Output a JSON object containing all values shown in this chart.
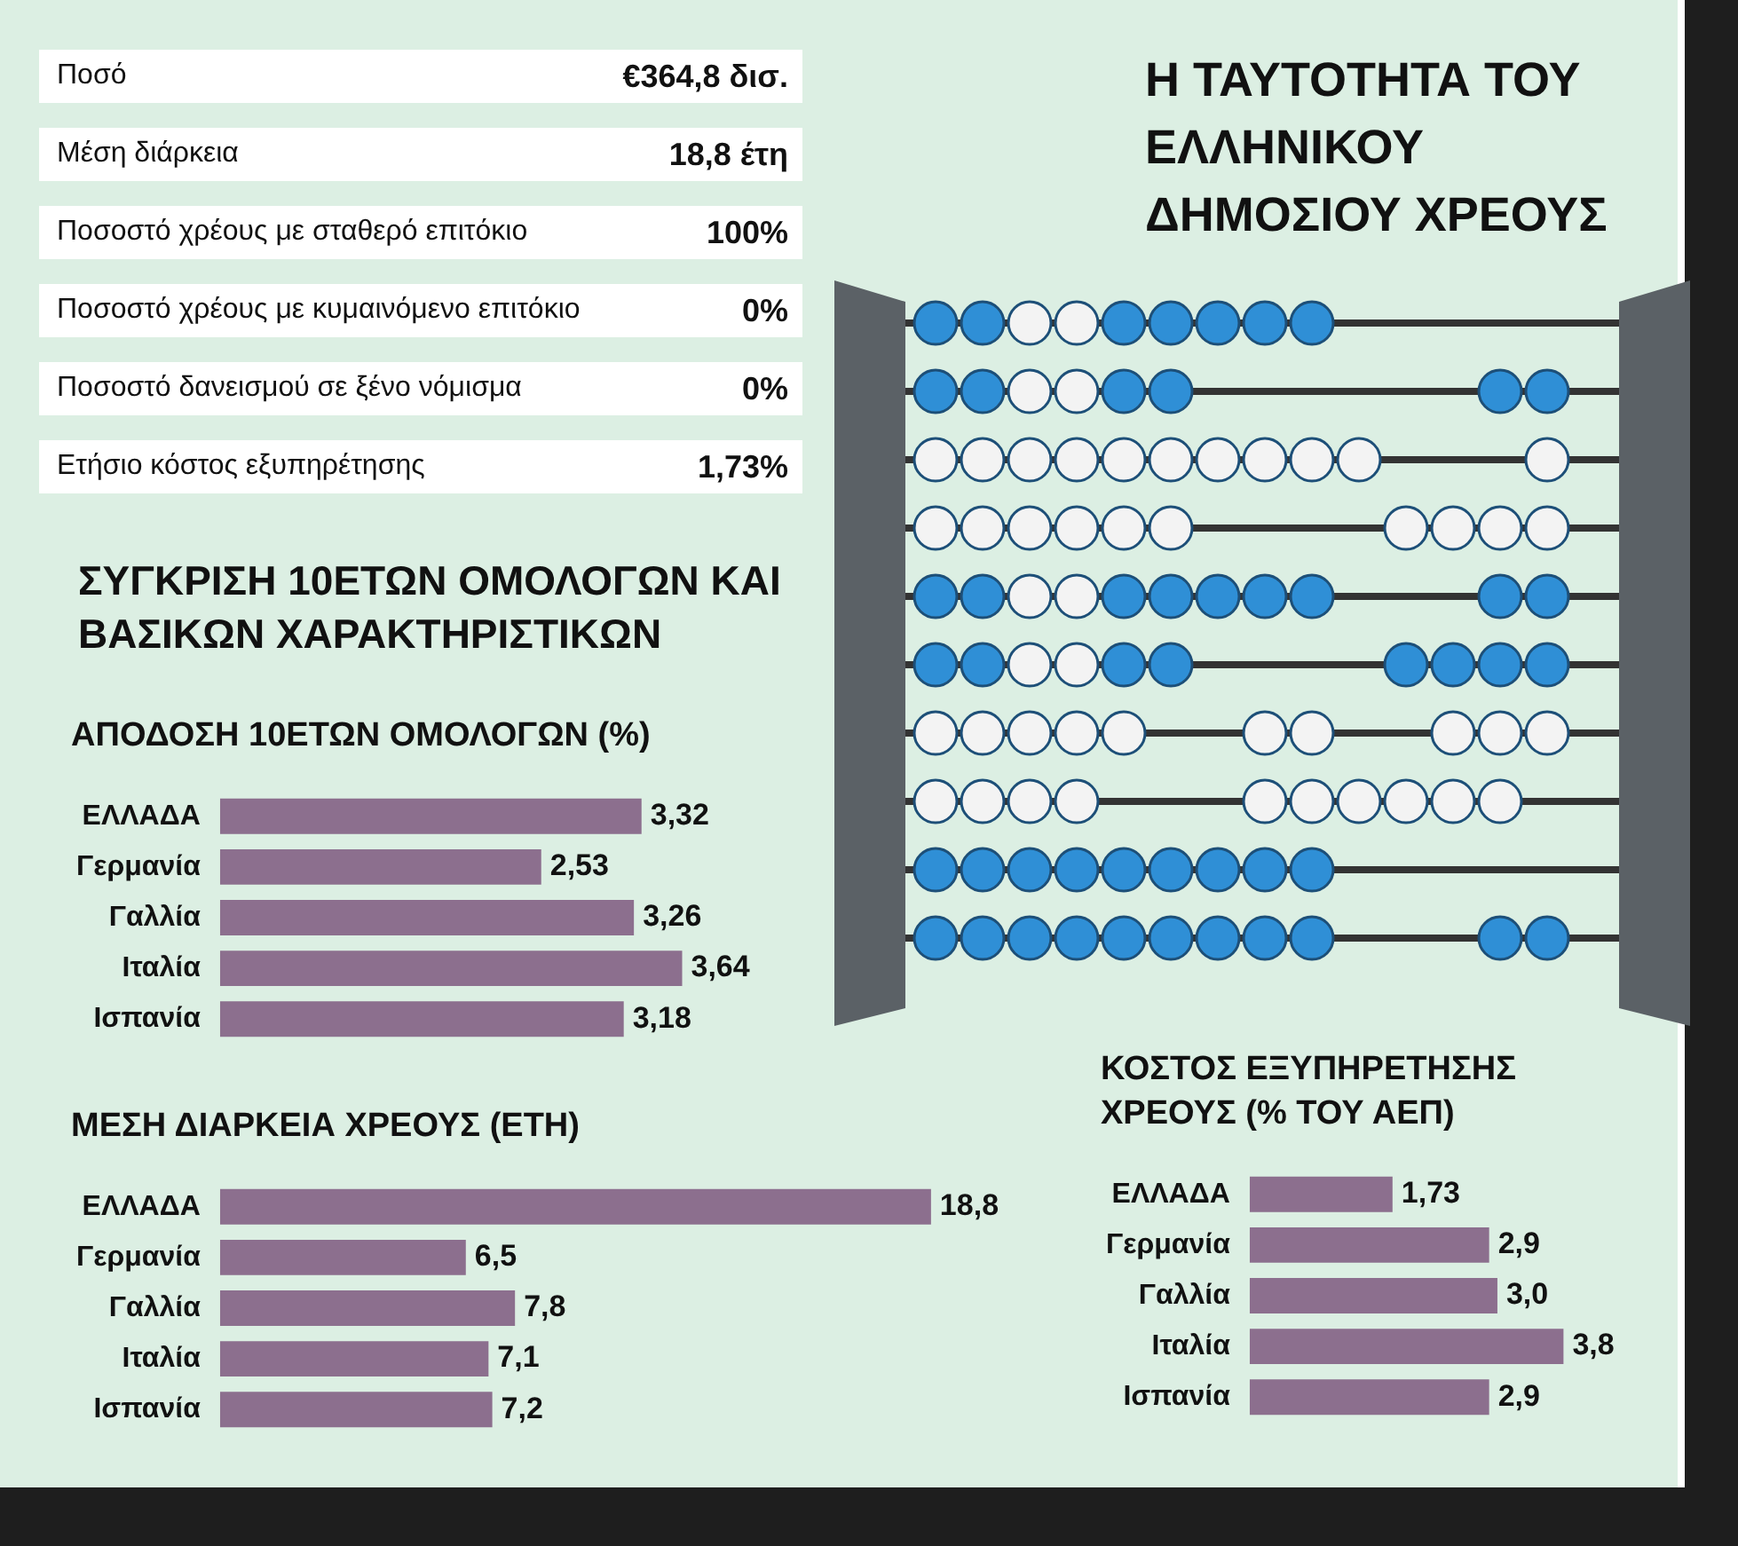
{
  "chart_data": [
    {
      "type": "other",
      "title": "Η ΤΑΥΤΟΤΗΤΑ ΤΟΥ ΕΛΛΗΝΙΚΟΥ ΔΗΜΟΣΙΟΥ ΧΡΕΟΥΣ",
      "subtitle": "ΣΥΓΚΡΙΣΗ 10ΕΤΩΝ ΟΜΟΛΟΓΩΝ ΚΑΙ ΒΑΣΙΚΩΝ ΧΑΡΑΚΤΗΡΙΣΤΙΚΩΝ",
      "annotations": [
        "Ποσό",
        "€364,8 δισ.",
        "Μέση διάρκεια",
        "18,8 έτη",
        "Ποσοστό χρέους με σταθερό επιτόκιο",
        "100%",
        "Ποσοστό χρέους με κυμαινόμενο επιτόκιο",
        "0%",
        "Ποσοστό δανεισμού σε ξένο νόμισμα",
        "0%",
        "Ετήσιο κόστος εξυπηρέτησης",
        "1,73%"
      ]
    },
    {
      "type": "bar",
      "orientation": "horizontal",
      "title": "ΑΠΟΔΟΣΗ 10ΕΤΩΝ ΟΜΟΛΟΓΩΝ (%)",
      "categories": [
        "ΕΛΛΑΔΑ",
        "Γερμανία",
        "Γαλλία",
        "Ιταλία",
        "Ισπανία"
      ],
      "values": [
        3.32,
        2.53,
        3.26,
        3.64,
        3.18
      ],
      "value_labels": [
        "3,32",
        "2,53",
        "3,26",
        "3,64",
        "3,18"
      ],
      "color": "#8c6f8e"
    },
    {
      "type": "bar",
      "orientation": "horizontal",
      "title": "ΜΕΣΗ ΔΙΑΡΚΕΙΑ ΧΡΕΟΥΣ (ΕΤΗ)",
      "categories": [
        "ΕΛΛΑΔΑ",
        "Γερμανία",
        "Γαλλία",
        "Ιταλία",
        "Ισπανία"
      ],
      "values": [
        18.8,
        6.5,
        7.8,
        7.1,
        7.2
      ],
      "value_labels": [
        "18,8",
        "6,5",
        "7,8",
        "7,1",
        "7,2"
      ],
      "color": "#8c6f8e"
    },
    {
      "type": "bar",
      "orientation": "horizontal",
      "title": "ΚΟΣΤΟΣ ΕΞΥΠΗΡΕΤΗΣΗΣ ΧΡΕΟΥΣ (% ΤΟΥ ΑΕΠ)",
      "categories": [
        "ΕΛΛΑΔΑ",
        "Γερμανία",
        "Γαλλία",
        "Ιταλία",
        "Ισπανία"
      ],
      "values": [
        1.73,
        2.9,
        3.0,
        3.8,
        2.9
      ],
      "value_labels": [
        "1,73",
        "2,9",
        "3,0",
        "3,8",
        "2,9"
      ],
      "color": "#8c6f8e"
    }
  ]
}
